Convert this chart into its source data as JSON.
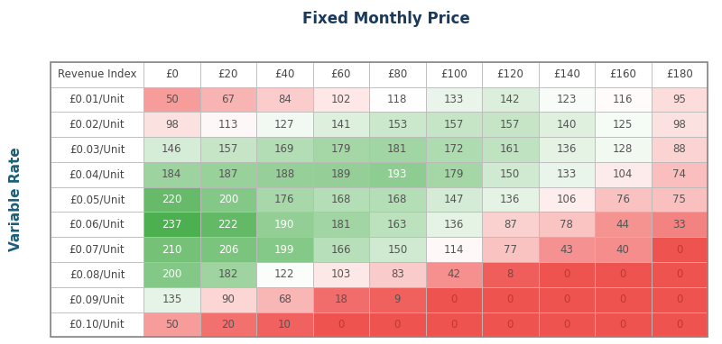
{
  "title": "Fixed Monthly Price",
  "col_header": [
    "£0",
    "£20",
    "£40",
    "£60",
    "£80",
    "£100",
    "£120",
    "£140",
    "£160",
    "£180"
  ],
  "row_labels": [
    "Revenue Index",
    "£0.01/Unit",
    "£0.02/Unit",
    "£0.03/Unit",
    "£0.04/Unit",
    "£0.05/Unit",
    "£0.06/Unit",
    "£0.07/Unit",
    "£0.08/Unit",
    "£0.09/Unit",
    "£0.10/Unit"
  ],
  "ylabel": "Variable Rate",
  "values": [
    [
      50,
      67,
      84,
      102,
      118,
      133,
      142,
      123,
      116,
      95
    ],
    [
      98,
      113,
      127,
      141,
      153,
      157,
      157,
      140,
      125,
      98
    ],
    [
      146,
      157,
      169,
      179,
      181,
      172,
      161,
      136,
      128,
      88
    ],
    [
      184,
      187,
      188,
      189,
      193,
      179,
      150,
      133,
      104,
      74
    ],
    [
      220,
      200,
      176,
      168,
      168,
      147,
      136,
      106,
      76,
      75
    ],
    [
      237,
      222,
      190,
      181,
      163,
      136,
      87,
      78,
      44,
      33
    ],
    [
      210,
      206,
      199,
      166,
      150,
      114,
      77,
      43,
      40,
      0
    ],
    [
      200,
      182,
      122,
      103,
      83,
      42,
      8,
      0,
      0,
      0
    ],
    [
      135,
      90,
      68,
      18,
      9,
      0,
      0,
      0,
      0,
      0
    ],
    [
      50,
      20,
      10,
      0,
      0,
      0,
      0,
      0,
      0,
      0
    ]
  ],
  "title_color": "#1a3a5c",
  "title_fontsize": 12,
  "cell_fontsize": 8.5,
  "ylabel_fontsize": 11,
  "ylabel_color": "#1a5f7a",
  "border_color": "#bbbbbb",
  "vmax": 237
}
